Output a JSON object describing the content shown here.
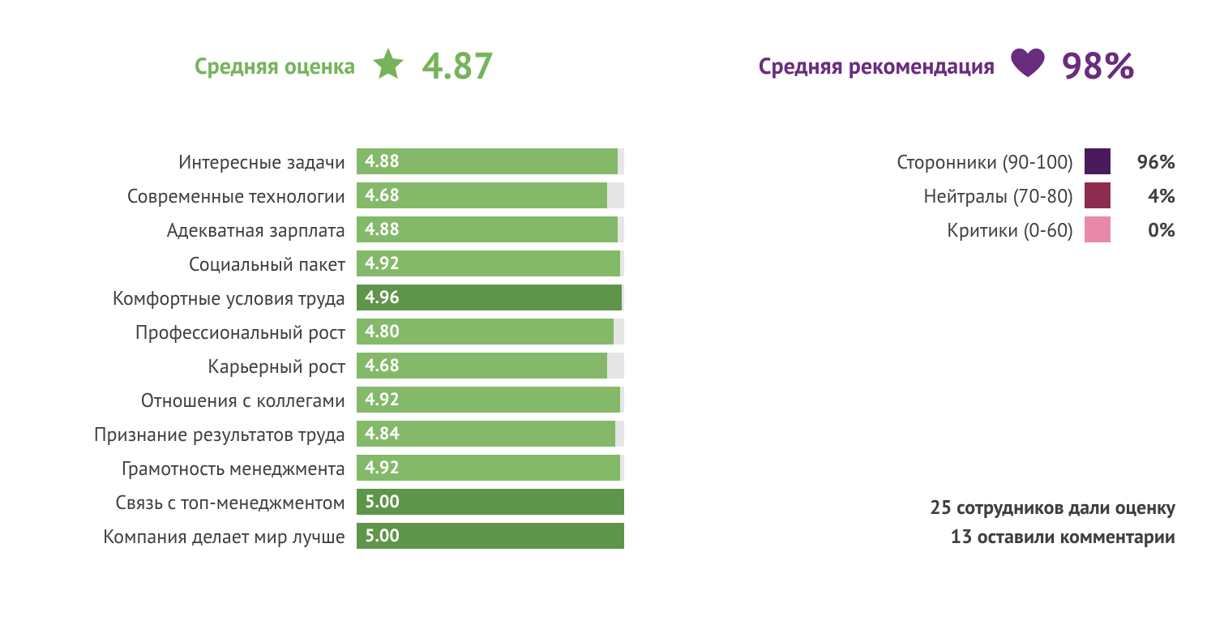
{
  "colors": {
    "rating_green": "#78b35c",
    "rating_label": "#78b35c",
    "reco_purple": "#6a2c7f",
    "bar_light": "#84b969",
    "bar_dark": "#5f954a",
    "bar_track": "#e6e6e6",
    "text": "#3e3e3e",
    "swatch_promoters": "#4a1b5c",
    "swatch_neutral": "#8c2d4f",
    "swatch_critics": "#ea89aa"
  },
  "summary": {
    "rating_label": "Средняя оценка",
    "rating_value": "4.87",
    "reco_label": "Средняя рекомендация",
    "reco_value": "98%"
  },
  "bars": {
    "max": 5.0,
    "dark_threshold": 4.95,
    "items": [
      {
        "label": "Интересные задачи",
        "value": 4.88,
        "display": "4.88"
      },
      {
        "label": "Современные технологии",
        "value": 4.68,
        "display": "4.68"
      },
      {
        "label": "Адекватная зарплата",
        "value": 4.88,
        "display": "4.88"
      },
      {
        "label": "Социальный пакет",
        "value": 4.92,
        "display": "4.92"
      },
      {
        "label": "Комфортные условия труда",
        "value": 4.96,
        "display": "4.96"
      },
      {
        "label": "Профессиональный рост",
        "value": 4.8,
        "display": "4.80"
      },
      {
        "label": "Карьерный рост",
        "value": 4.68,
        "display": "4.68"
      },
      {
        "label": "Отношения с коллегами",
        "value": 4.92,
        "display": "4.92"
      },
      {
        "label": "Признание результатов труда",
        "value": 4.84,
        "display": "4.84"
      },
      {
        "label": "Грамотность менеджмента",
        "value": 4.92,
        "display": "4.92"
      },
      {
        "label": "Связь с топ-менеджментом",
        "value": 5.0,
        "display": "5.00"
      },
      {
        "label": "Компания делает мир лучше",
        "value": 5.0,
        "display": "5.00"
      }
    ]
  },
  "recommendation_breakdown": [
    {
      "label": "Сторонники (90-100)",
      "value": "96%",
      "color_key": "swatch_promoters"
    },
    {
      "label": "Нейтралы (70-80)",
      "value": "4%",
      "color_key": "swatch_neutral"
    },
    {
      "label": "Критики (0-60)",
      "value": "0%",
      "color_key": "swatch_critics"
    }
  ],
  "footer": {
    "line1": "25 сотрудников дали оценку",
    "line2": "13 оставили комментарии"
  }
}
